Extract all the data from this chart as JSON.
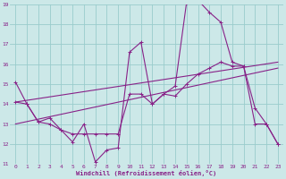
{
  "xlabel": "Windchill (Refroidissement éolien,°C)",
  "bg_color": "#cce8e8",
  "grid_color": "#99cccc",
  "line_color": "#882288",
  "xlim": [
    -0.5,
    23.5
  ],
  "ylim": [
    11,
    19
  ],
  "yticks": [
    11,
    12,
    13,
    14,
    15,
    16,
    17,
    18,
    19
  ],
  "xticks": [
    0,
    1,
    2,
    3,
    4,
    5,
    6,
    7,
    8,
    9,
    10,
    11,
    12,
    13,
    14,
    15,
    16,
    17,
    18,
    19,
    20,
    21,
    22,
    23
  ],
  "series1_x": [
    0,
    1,
    2,
    3,
    4,
    5,
    6,
    7,
    8,
    9,
    10,
    11,
    12,
    13,
    14,
    15,
    16,
    17,
    18,
    19,
    20,
    21,
    22,
    23
  ],
  "series1_y": [
    15.1,
    14.0,
    13.1,
    13.0,
    12.7,
    12.1,
    13.0,
    11.1,
    11.7,
    11.8,
    16.6,
    17.1,
    14.0,
    14.5,
    14.9,
    19.1,
    19.2,
    18.6,
    18.1,
    16.1,
    15.9,
    13.0,
    13.0,
    12.0
  ],
  "series2_x": [
    0,
    1,
    2,
    3,
    4,
    5,
    6,
    7,
    8,
    9,
    10,
    11,
    12,
    13,
    14,
    15,
    16,
    17,
    18,
    19,
    20,
    21,
    22,
    23
  ],
  "series2_y": [
    14.1,
    14.0,
    13.1,
    13.3,
    12.7,
    12.5,
    12.5,
    12.5,
    12.5,
    12.5,
    14.5,
    14.5,
    14.0,
    14.5,
    14.4,
    15.0,
    15.5,
    15.8,
    16.1,
    15.9,
    15.9,
    13.8,
    13.0,
    12.0
  ],
  "series3_x": [
    0,
    23
  ],
  "series3_y": [
    13.0,
    15.8
  ],
  "series4_x": [
    0,
    23
  ],
  "series4_y": [
    14.1,
    16.1
  ]
}
